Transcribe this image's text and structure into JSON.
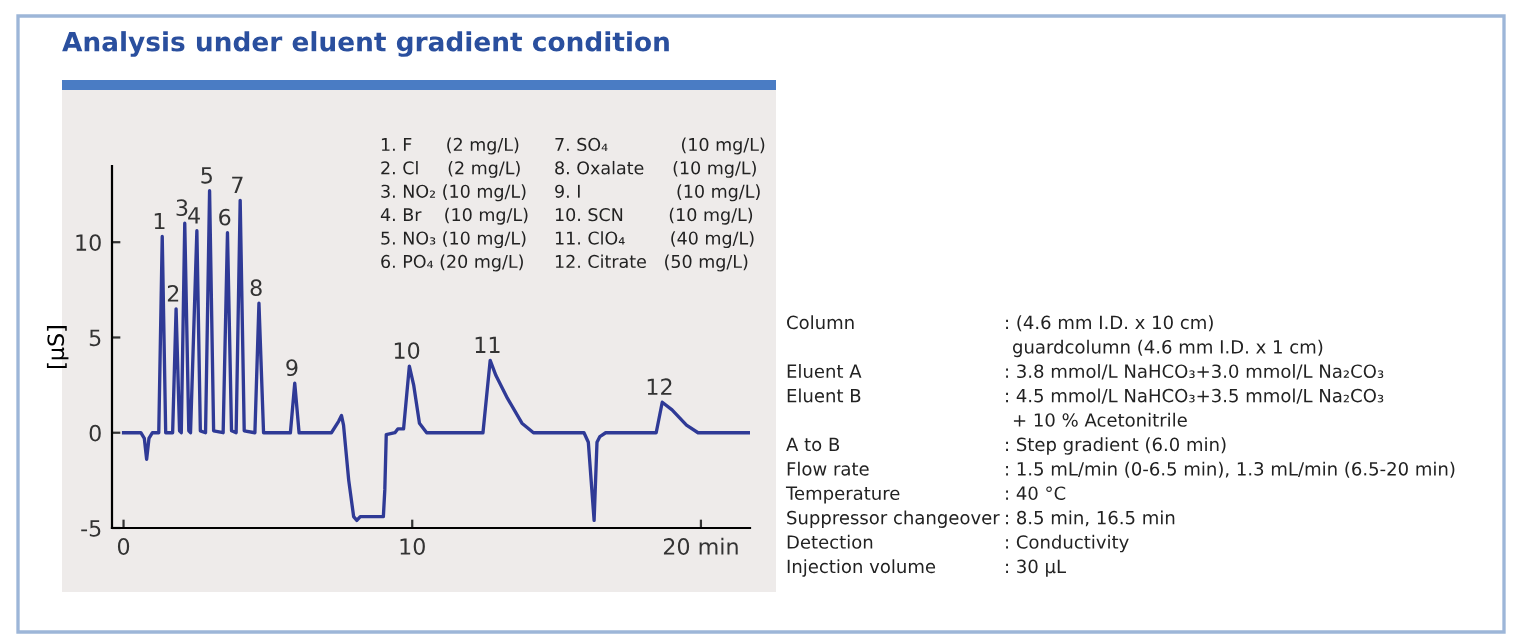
{
  "chart_data": {
    "type": "line",
    "title": "Analysis under eluent gradient condition",
    "ylabel": "[μS]",
    "x": [
      0,
      0.6,
      0.72,
      0.8,
      0.88,
      1.0,
      1.22,
      1.34,
      1.46,
      1.7,
      1.82,
      1.94,
      2.0,
      2.12,
      2.26,
      2.32,
      2.54,
      2.66,
      2.84,
      2.98,
      3.12,
      3.45,
      3.6,
      3.74,
      3.9,
      4.04,
      4.18,
      4.55,
      4.69,
      4.85,
      5.78,
      5.93,
      6.08,
      7.2,
      7.45,
      7.55,
      7.62,
      7.8,
      7.97,
      8.08,
      8.2,
      9.0,
      9.05,
      9.1,
      9.4,
      9.5,
      9.7,
      9.9,
      10.05,
      10.25,
      10.5,
      12.45,
      12.7,
      12.9,
      13.3,
      13.8,
      14.2,
      15.95,
      16.1,
      16.3,
      16.4,
      16.5,
      16.7,
      18.45,
      18.66,
      19.0,
      19.5,
      19.9,
      21.7
    ],
    "series": [
      {
        "color": "#2f3a96",
        "values": [
          0,
          0,
          -0.3,
          -1.4,
          -0.3,
          0,
          0,
          10.3,
          0,
          0,
          6.5,
          0.1,
          0,
          11.0,
          0.1,
          0,
          10.6,
          0.1,
          0,
          12.7,
          0.1,
          0,
          10.5,
          0.1,
          0,
          12.2,
          0.1,
          0,
          6.8,
          0,
          0,
          2.6,
          0,
          0,
          0.6,
          0.9,
          0.4,
          -2.5,
          -4.4,
          -4.6,
          -4.4,
          -4.4,
          -3.0,
          -0.1,
          0,
          0.2,
          0.2,
          3.5,
          2.5,
          0.5,
          0,
          0,
          3.8,
          3.0,
          1.8,
          0.5,
          0,
          0,
          -0.5,
          -4.6,
          -0.5,
          -0.2,
          0,
          0,
          1.6,
          1.2,
          0.4,
          0,
          0
        ]
      }
    ],
    "xlim": [
      -0.4,
      21.7
    ],
    "ylim": [
      -5,
      14
    ],
    "xticks": [
      0,
      10,
      {
        "value": 20,
        "label": "20 min"
      }
    ],
    "yticks": [
      -5,
      0,
      5,
      10
    ],
    "grid": false,
    "legend": false,
    "marker": "none",
    "line_style": "solid",
    "annotations": [
      {
        "text": "1",
        "x": 1.34,
        "y": 10.3
      },
      {
        "text": "2",
        "x": 1.82,
        "y": 6.5
      },
      {
        "text": "3",
        "x": 2.12,
        "y": 11.0
      },
      {
        "text": "4",
        "x": 2.54,
        "y": 10.6
      },
      {
        "text": "5",
        "x": 2.98,
        "y": 12.7
      },
      {
        "text": "6",
        "x": 3.6,
        "y": 10.5
      },
      {
        "text": "7",
        "x": 4.04,
        "y": 12.2
      },
      {
        "text": "8",
        "x": 4.69,
        "y": 6.8
      },
      {
        "text": "9",
        "x": 5.93,
        "y": 2.6
      },
      {
        "text": "10",
        "x": 9.9,
        "y": 3.5
      },
      {
        "text": "11",
        "x": 12.7,
        "y": 3.8
      },
      {
        "text": "12",
        "x": 18.66,
        "y": 1.6
      },
      "1. F      (2 mg/L)",
      "2. Cl     (2 mg/L)",
      "3. NO₂ (10 mg/L)",
      "4. Br    (10 mg/L)",
      "5. NO₃ (10 mg/L)",
      "6. PO₄ (20 mg/L)",
      "7. SO₄             (10 mg/L)",
      "8. Oxalate     (10 mg/L)",
      "9. I                 (10 mg/L)",
      "10. SCN        (10 mg/L)",
      "11. ClO₄        (40 mg/L)",
      "12. Citrate   (50 mg/L)",
      "Column : (4.6 mm I.D. x 10 cm)",
      "guardcolumn (4.6 mm I.D. x 1 cm)",
      "Eluent A : 3.8 mmol/L NaHCO₃+3.0 mmol/L Na₂CO₃",
      "Eluent B : 4.5 mmol/L NaHCO₃+3.5 mmol/L Na₂CO₃",
      "+ 10 % Acetonitrile",
      "A to B : Step gradient (6.0 min)",
      "Flow rate : 1.5 mL/min (0-6.5 min), 1.3 mL/min (6.5-20 min)",
      "Temperature : 40 °C",
      "Suppressor changeover : 8.5 min, 16.5 min",
      "Detection : Conductivity",
      "Injection volume : 30 μL"
    ]
  }
}
